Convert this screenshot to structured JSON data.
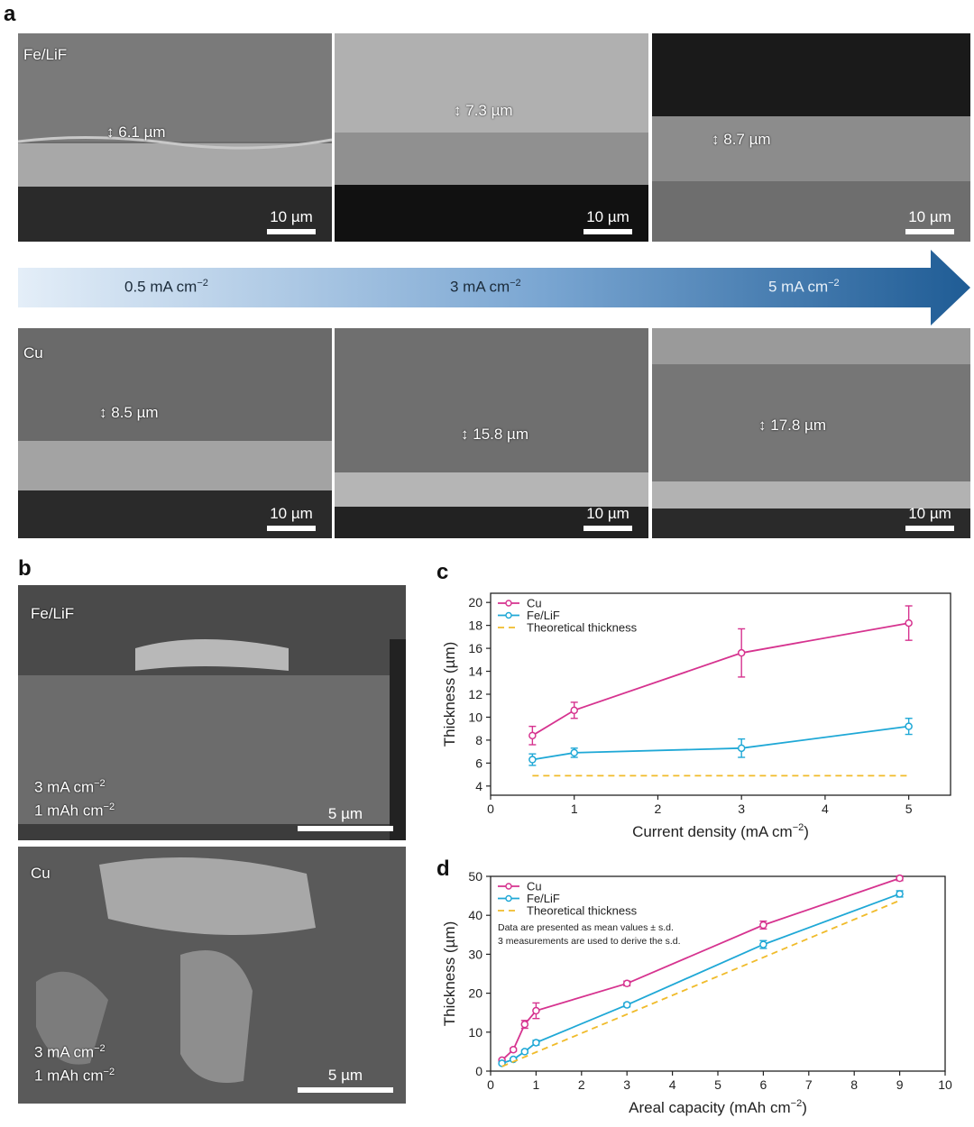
{
  "panel_labels": {
    "a": "a",
    "b": "b",
    "c": "c",
    "d": "d"
  },
  "panel_a": {
    "top_row_label": "Fe/LiF",
    "bottom_row_label": "Cu",
    "scale_bar": "10 µm",
    "top": [
      "6.1 µm",
      "7.3 µm",
      "8.7 µm"
    ],
    "bottom": [
      "8.5 µm",
      "15.8 µm",
      "17.8 µm"
    ],
    "arrow": {
      "labels": [
        "0.5 mA cm",
        "3 mA cm",
        "5 mA cm"
      ],
      "sup": "−2"
    }
  },
  "panel_b": {
    "top_label": "Fe/LiF",
    "bottom_label": "Cu",
    "cond_line1": "3 mA cm",
    "cond_line2": "1 mAh cm",
    "sup": "−2",
    "scale_bar": "5 µm"
  },
  "chart_data": [
    {
      "type": "line",
      "xlabel": "Current density (mA cm",
      "xlabel_sup": "−2",
      "xlabel_tail": ")",
      "ylabel": "Thickness (µm)",
      "xlim": [
        0,
        5.5
      ],
      "ylim": [
        3.2,
        20.8
      ],
      "xticks": [
        0,
        1,
        2,
        3,
        4,
        5
      ],
      "yticks": [
        4,
        6,
        8,
        10,
        12,
        14,
        16,
        18,
        20
      ],
      "legend_position": "top-left",
      "series": [
        {
          "name": "Cu",
          "color": "#d6338f",
          "x": [
            0.5,
            1,
            3,
            5
          ],
          "y": [
            8.4,
            10.6,
            15.6,
            18.2
          ],
          "err": [
            0.8,
            0.7,
            2.1,
            1.5
          ]
        },
        {
          "name": "Fe/LiF",
          "color": "#1fa8d6",
          "x": [
            0.5,
            1,
            3,
            5
          ],
          "y": [
            6.3,
            6.9,
            7.3,
            9.2
          ],
          "err": [
            0.5,
            0.4,
            0.8,
            0.7
          ]
        },
        {
          "name": "Theoretical thickness",
          "color": "#f0bb2a",
          "dashed": true,
          "x": [
            0.5,
            5
          ],
          "y": [
            4.9,
            4.9
          ]
        }
      ]
    },
    {
      "type": "line",
      "xlabel": "Areal capacity (mAh cm",
      "xlabel_sup": "−2",
      "xlabel_tail": ")",
      "ylabel": "Thickness (µm)",
      "xlim": [
        0,
        10
      ],
      "ylim": [
        0,
        50
      ],
      "xticks": [
        0,
        1,
        2,
        3,
        4,
        5,
        6,
        7,
        8,
        9,
        10
      ],
      "yticks": [
        0,
        10,
        20,
        30,
        40,
        50
      ],
      "legend_position": "top-left",
      "annotations": [
        "Data are presented as mean values ± s.d.",
        "3 measurements are used to derive the s.d."
      ],
      "series": [
        {
          "name": "Cu",
          "color": "#d6338f",
          "x": [
            0.25,
            0.5,
            0.75,
            1,
            3,
            6,
            9
          ],
          "y": [
            2.8,
            5.5,
            12.0,
            15.5,
            22.5,
            37.5,
            49.5
          ],
          "err": [
            0.3,
            0.4,
            1.0,
            2.0,
            0.6,
            1.0,
            0.6
          ]
        },
        {
          "name": "Fe/LiF",
          "color": "#1fa8d6",
          "x": [
            0.25,
            0.5,
            0.75,
            1,
            3,
            6,
            9
          ],
          "y": [
            2.0,
            3.0,
            5.0,
            7.3,
            17.0,
            32.5,
            45.5
          ],
          "err": [
            0.3,
            0.3,
            0.4,
            0.6,
            0.5,
            1.0,
            0.8
          ]
        },
        {
          "name": "Theoretical thickness",
          "color": "#f0bb2a",
          "dashed": true,
          "x": [
            0.25,
            9
          ],
          "y": [
            1.2,
            43.8
          ]
        }
      ]
    }
  ]
}
